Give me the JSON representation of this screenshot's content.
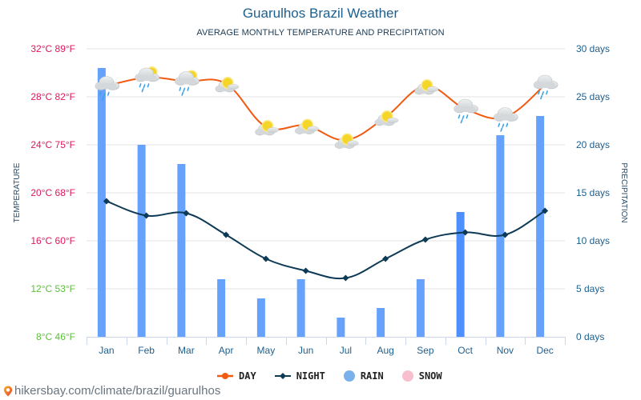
{
  "header": {
    "title": "Guarulhos Brazil Weather",
    "subtitle": "AVERAGE MONTHLY TEMPERATURE AND PRECIPITATION"
  },
  "colors": {
    "day": "#f25a12",
    "night": "#0d3a55",
    "rain": "#66a1fc",
    "rain_highlight": "#4d8ffd",
    "snow": "#f8bfcf",
    "warm_tick": "#e0175c",
    "cool_tick": "#5cbf3a",
    "right_tick": "#1c5f8e",
    "grid": "#e3e3e3"
  },
  "chart_data": {
    "type": "bar+line",
    "title": "Guarulhos Brazil Weather",
    "subtitle": "AVERAGE MONTHLY TEMPERATURE AND PRECIPITATION",
    "categories": [
      "Jan",
      "Feb",
      "Mar",
      "Apr",
      "May",
      "Jun",
      "Jul",
      "Aug",
      "Sep",
      "Oct",
      "Nov",
      "Dec"
    ],
    "series": [
      {
        "name": "DAY",
        "type": "line",
        "axis": "left",
        "unit": "°C",
        "values": [
          28.9,
          29.6,
          29.3,
          29.1,
          25.5,
          25.6,
          24.4,
          26.3,
          28.9,
          27.0,
          26.3,
          29.0
        ]
      },
      {
        "name": "NIGHT",
        "type": "line",
        "axis": "left",
        "unit": "°C",
        "values": [
          19.3,
          18.1,
          18.3,
          16.5,
          14.5,
          13.5,
          12.9,
          14.5,
          16.1,
          16.7,
          16.5,
          18.5
        ]
      },
      {
        "name": "RAIN",
        "type": "bar",
        "axis": "right",
        "unit": "days",
        "values": [
          28,
          20,
          18,
          6,
          4,
          6,
          2,
          3,
          6,
          13,
          21,
          23
        ]
      },
      {
        "name": "SNOW",
        "type": "bar",
        "axis": "right",
        "unit": "days",
        "values": [
          0,
          0,
          0,
          0,
          0,
          0,
          0,
          0,
          0,
          0,
          0,
          0
        ]
      }
    ],
    "weather_icons": [
      "cloud-rain",
      "cloud-sun-rain",
      "cloud-sun-rain",
      "sun-cloud",
      "sun-cloud",
      "sun-cloud",
      "sun-cloud",
      "sun-cloud",
      "sun-cloud",
      "cloud-rain",
      "cloud-rain",
      "cloud-rain"
    ],
    "ylabel_left": "TEMPERATURE",
    "ylabel_right": "PRECIPITATION",
    "ylim_left": [
      8,
      32
    ],
    "ylim_right": [
      0,
      30
    ],
    "yticks_left": [
      {
        "value": 32,
        "label": "32°C 89°F"
      },
      {
        "value": 28,
        "label": "28°C 82°F"
      },
      {
        "value": 24,
        "label": "24°C 75°F"
      },
      {
        "value": 20,
        "label": "20°C 68°F"
      },
      {
        "value": 16,
        "label": "16°C 60°F"
      },
      {
        "value": 12,
        "label": "12°C 53°F"
      },
      {
        "value": 8,
        "label": "8°C 46°F"
      }
    ],
    "yticks_right": [
      {
        "value": 30,
        "label": "30 days"
      },
      {
        "value": 25,
        "label": "25 days"
      },
      {
        "value": 20,
        "label": "20 days"
      },
      {
        "value": 15,
        "label": "15 days"
      },
      {
        "value": 10,
        "label": "10 days"
      },
      {
        "value": 5,
        "label": "5 days"
      },
      {
        "value": 0,
        "label": "0 days"
      }
    ],
    "highlighted_category": "Oct",
    "grid": true,
    "legend_position": "bottom"
  },
  "legend": {
    "day": "DAY",
    "night": "NIGHT",
    "rain": "RAIN",
    "snow": "SNOW"
  },
  "footer": {
    "source": "hikersbay.com/climate/brazil/guarulhos"
  }
}
